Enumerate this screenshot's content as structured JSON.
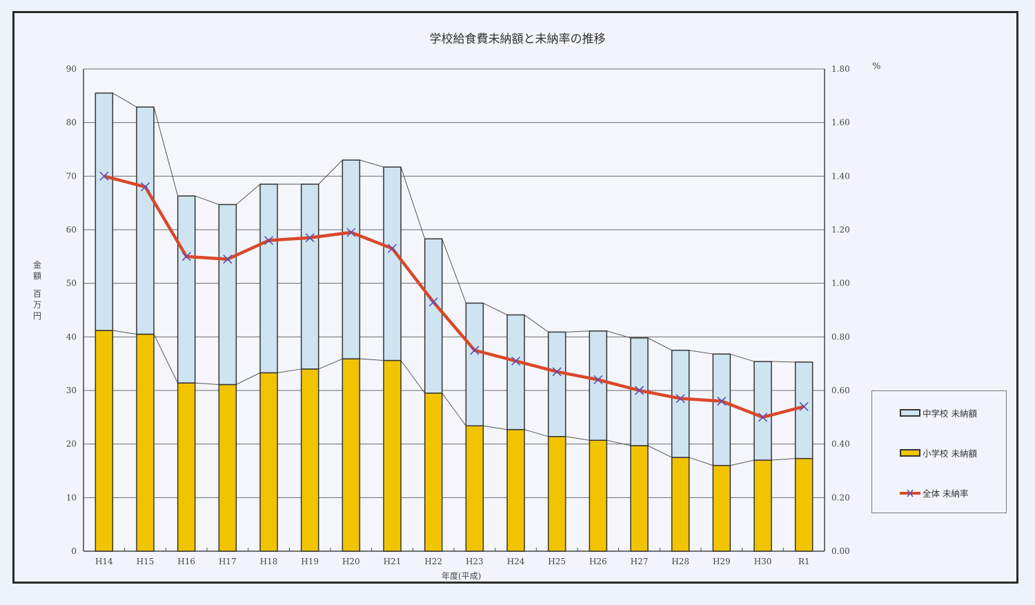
{
  "chart_data": {
    "type": "bar+line",
    "title": "学校給食費未納額と未納率の推移",
    "xlabel": "年度(平成)",
    "ylabel": "金額 百万円",
    "ylabel_right": "%",
    "categories": [
      "H14",
      "H15",
      "H16",
      "H17",
      "H18",
      "H19",
      "H20",
      "H21",
      "H22",
      "H23",
      "H24",
      "H25",
      "H26",
      "H27",
      "H28",
      "H29",
      "H30",
      "R1"
    ],
    "ylim": [
      0,
      90
    ],
    "ylim_right": [
      0,
      1.8
    ],
    "yticks": [
      0,
      10,
      20,
      30,
      40,
      50,
      60,
      70,
      80,
      90
    ],
    "yticks_right": [
      "0.00",
      "0.20",
      "0.40",
      "0.60",
      "0.80",
      "1.00",
      "1.20",
      "1.40",
      "1.60",
      "1.80"
    ],
    "grid": true,
    "legend_position": "right",
    "series": [
      {
        "name": "小学校 未納額",
        "type": "stacked-bar",
        "axis": "left",
        "color": "#f2c400",
        "values": [
          41.2,
          40.5,
          31.4,
          31.1,
          33.3,
          34.0,
          35.9,
          35.6,
          29.5,
          23.4,
          22.7,
          21.4,
          20.7,
          19.7,
          17.5,
          16.0,
          17.0,
          17.3
        ]
      },
      {
        "name": "中学校 未納額",
        "type": "stacked-bar",
        "axis": "left",
        "color": "#cfe4f1",
        "values": [
          44.3,
          42.4,
          34.9,
          33.6,
          35.2,
          34.5,
          37.1,
          36.1,
          28.8,
          22.9,
          21.4,
          19.5,
          20.4,
          20.1,
          20.0,
          20.8,
          18.4,
          18.0
        ]
      },
      {
        "name": "全体 未納率",
        "type": "line",
        "axis": "right",
        "color": "#d9482a",
        "marker_color": "#5b4fb5",
        "values": [
          1.4,
          1.36,
          1.1,
          1.09,
          1.16,
          1.17,
          1.19,
          1.13,
          0.93,
          0.75,
          0.71,
          0.67,
          0.64,
          0.6,
          0.57,
          0.56,
          0.5,
          0.54
        ]
      }
    ]
  },
  "labels": {
    "title": "学校給食費未納額と未納率の推移",
    "ylabel_lines": [
      "金",
      "額",
      "",
      "百",
      "万",
      "円"
    ],
    "pct": "%",
    "xlabel": "年度(平成)",
    "legend": [
      "中学校 未納額",
      "小学校 未納額",
      "全体 未納率"
    ]
  }
}
